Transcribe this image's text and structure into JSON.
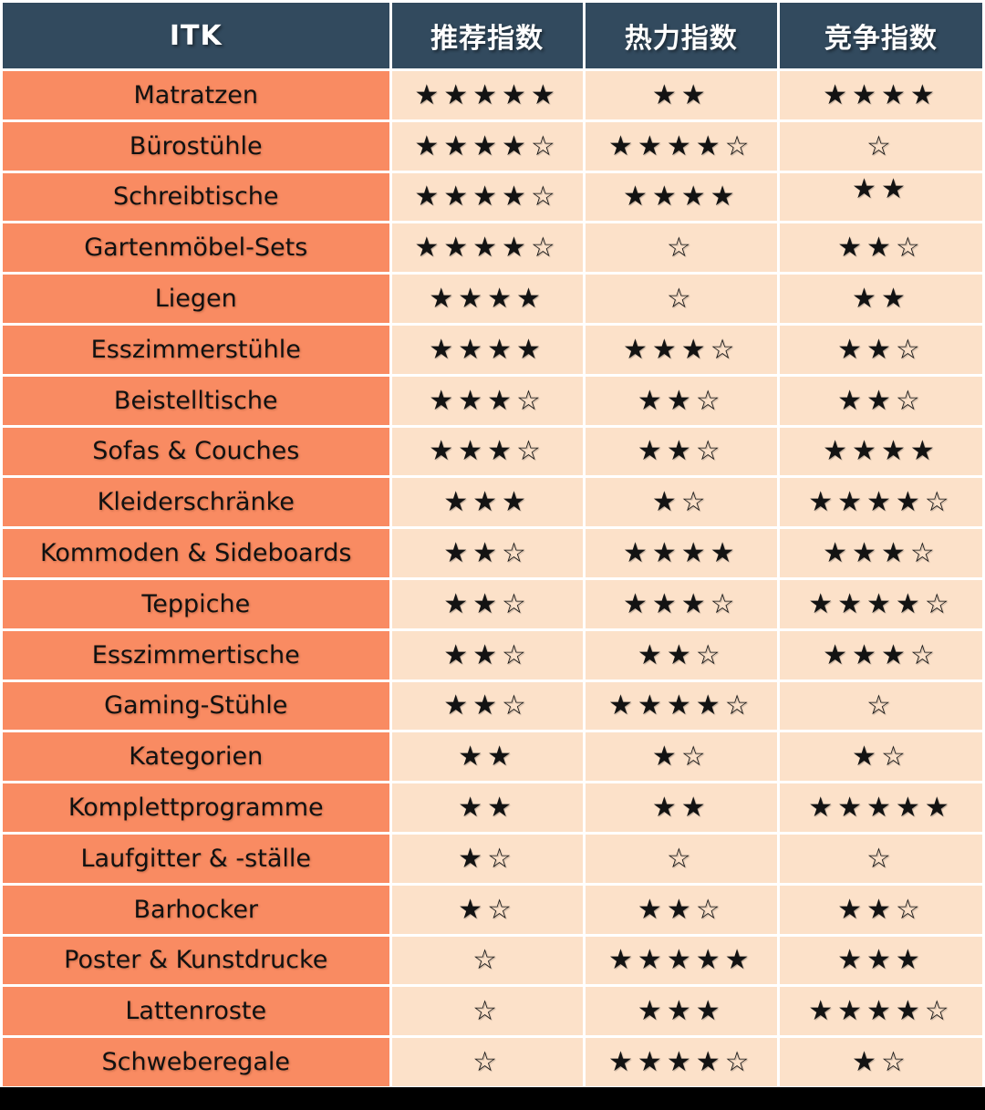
{
  "table": {
    "columns": [
      "ITK",
      "推荐指数",
      "热力指数",
      "竞争指数"
    ]
  },
  "rows": [
    {
      "label": "Matratzen",
      "recommend": {
        "filled": 5,
        "outline": 0
      },
      "heat": {
        "filled": 2,
        "outline": 0
      },
      "competition": {
        "filled": 4,
        "outline": 0
      }
    },
    {
      "label": "Bürostühle",
      "recommend": {
        "filled": 4,
        "outline": 1
      },
      "heat": {
        "filled": 4,
        "outline": 1
      },
      "competition": {
        "filled": 0,
        "outline": 1
      }
    },
    {
      "label": "Schreibtische",
      "recommend": {
        "filled": 4,
        "outline": 1
      },
      "heat": {
        "filled": 4,
        "outline": 0
      },
      "competition": {
        "filled": 2,
        "outline": 0,
        "align": "top"
      }
    },
    {
      "label": "Gartenmöbel-Sets",
      "recommend": {
        "filled": 4,
        "outline": 1
      },
      "heat": {
        "filled": 0,
        "outline": 1
      },
      "competition": {
        "filled": 2,
        "outline": 1
      }
    },
    {
      "label": "Liegen",
      "recommend": {
        "filled": 4,
        "outline": 0
      },
      "heat": {
        "filled": 0,
        "outline": 1
      },
      "competition": {
        "filled": 2,
        "outline": 0
      }
    },
    {
      "label": "Esszimmerstühle",
      "recommend": {
        "filled": 4,
        "outline": 0
      },
      "heat": {
        "filled": 3,
        "outline": 1
      },
      "competition": {
        "filled": 2,
        "outline": 1
      }
    },
    {
      "label": "Beistelltische",
      "recommend": {
        "filled": 3,
        "outline": 1
      },
      "heat": {
        "filled": 2,
        "outline": 1
      },
      "competition": {
        "filled": 2,
        "outline": 1
      }
    },
    {
      "label": "Sofas & Couches",
      "recommend": {
        "filled": 3,
        "outline": 1
      },
      "heat": {
        "filled": 2,
        "outline": 1
      },
      "competition": {
        "filled": 4,
        "outline": 0
      }
    },
    {
      "label": "Kleiderschränke",
      "recommend": {
        "filled": 3,
        "outline": 0
      },
      "heat": {
        "filled": 1,
        "outline": 1
      },
      "competition": {
        "filled": 4,
        "outline": 1
      }
    },
    {
      "label": "Kommoden & Sideboards",
      "recommend": {
        "filled": 2,
        "outline": 1
      },
      "heat": {
        "filled": 4,
        "outline": 0
      },
      "competition": {
        "filled": 3,
        "outline": 1
      }
    },
    {
      "label": "Teppiche",
      "recommend": {
        "filled": 2,
        "outline": 1
      },
      "heat": {
        "filled": 3,
        "outline": 1
      },
      "competition": {
        "filled": 4,
        "outline": 1
      }
    },
    {
      "label": "Esszimmertische",
      "recommend": {
        "filled": 2,
        "outline": 1
      },
      "heat": {
        "filled": 2,
        "outline": 1
      },
      "competition": {
        "filled": 3,
        "outline": 1
      }
    },
    {
      "label": "Gaming-Stühle",
      "recommend": {
        "filled": 2,
        "outline": 1
      },
      "heat": {
        "filled": 4,
        "outline": 1
      },
      "competition": {
        "filled": 0,
        "outline": 1
      }
    },
    {
      "label": "Kategorien",
      "recommend": {
        "filled": 2,
        "outline": 0
      },
      "heat": {
        "filled": 1,
        "outline": 1
      },
      "competition": {
        "filled": 1,
        "outline": 1
      }
    },
    {
      "label": "Komplettprogramme",
      "recommend": {
        "filled": 2,
        "outline": 0
      },
      "heat": {
        "filled": 2,
        "outline": 0
      },
      "competition": {
        "filled": 5,
        "outline": 0
      }
    },
    {
      "label": "Laufgitter & -ställe",
      "recommend": {
        "filled": 1,
        "outline": 1
      },
      "heat": {
        "filled": 0,
        "outline": 1
      },
      "competition": {
        "filled": 0,
        "outline": 1
      }
    },
    {
      "label": "Barhocker",
      "recommend": {
        "filled": 1,
        "outline": 1
      },
      "heat": {
        "filled": 2,
        "outline": 1
      },
      "competition": {
        "filled": 2,
        "outline": 1
      }
    },
    {
      "label": "Poster & Kunstdrucke",
      "recommend": {
        "filled": 0,
        "outline": 1
      },
      "heat": {
        "filled": 5,
        "outline": 0
      },
      "competition": {
        "filled": 3,
        "outline": 0
      }
    },
    {
      "label": "Lattenroste",
      "recommend": {
        "filled": 0,
        "outline": 1
      },
      "heat": {
        "filled": 3,
        "outline": 0
      },
      "competition": {
        "filled": 4,
        "outline": 1
      }
    },
    {
      "label": "Schweberegale",
      "recommend": {
        "filled": 0,
        "outline": 1
      },
      "heat": {
        "filled": 4,
        "outline": 1
      },
      "competition": {
        "filled": 1,
        "outline": 1
      }
    }
  ],
  "glyphs": {
    "star_filled": "★",
    "star_outline": "☆"
  },
  "colors": {
    "header_bg": "#324A5E",
    "header_text": "#FFFFFF",
    "category_bg": "#F98B62",
    "rating_bg": "#FCE1C9",
    "grid": "#FFFFFF",
    "star": "#131313",
    "footer_bar": "#000000"
  },
  "chart_data": {
    "type": "table",
    "title": "ITK category star-rating matrix",
    "columns": [
      "ITK",
      "推荐指数",
      "热力指数",
      "竞争指数"
    ],
    "rating_scale": [
      0,
      5
    ],
    "categories": [
      "Matratzen",
      "Bürostühle",
      "Schreibtische",
      "Gartenmöbel-Sets",
      "Liegen",
      "Esszimmerstühle",
      "Beistelltische",
      "Sofas & Couches",
      "Kleiderschränke",
      "Kommoden & Sideboards",
      "Teppiche",
      "Esszimmertische",
      "Gaming-Stühle",
      "Kategorien",
      "Komplettprogramme",
      "Laufgitter & -ställe",
      "Barhocker",
      "Poster & Kunstdrucke",
      "Lattenroste",
      "Schweberegale"
    ],
    "series": [
      {
        "name": "推荐指数",
        "filled_stars": [
          5,
          4,
          4,
          4,
          4,
          4,
          3,
          3,
          3,
          2,
          2,
          2,
          2,
          2,
          2,
          1,
          1,
          0,
          0,
          0
        ],
        "outline_stars": [
          0,
          1,
          1,
          1,
          0,
          0,
          1,
          1,
          0,
          1,
          1,
          1,
          1,
          0,
          0,
          1,
          1,
          1,
          1,
          1
        ]
      },
      {
        "name": "热力指数",
        "filled_stars": [
          2,
          4,
          4,
          0,
          0,
          3,
          2,
          2,
          1,
          4,
          3,
          2,
          4,
          1,
          2,
          0,
          2,
          5,
          3,
          4
        ],
        "outline_stars": [
          0,
          1,
          0,
          1,
          1,
          1,
          1,
          1,
          1,
          0,
          1,
          1,
          1,
          1,
          0,
          1,
          1,
          0,
          0,
          1
        ]
      },
      {
        "name": "竞争指数",
        "filled_stars": [
          4,
          0,
          2,
          2,
          2,
          2,
          2,
          4,
          4,
          3,
          4,
          3,
          0,
          1,
          5,
          0,
          2,
          3,
          4,
          1
        ],
        "outline_stars": [
          0,
          1,
          0,
          1,
          0,
          1,
          1,
          0,
          1,
          1,
          1,
          1,
          1,
          1,
          0,
          1,
          1,
          0,
          1,
          1
        ]
      }
    ]
  }
}
